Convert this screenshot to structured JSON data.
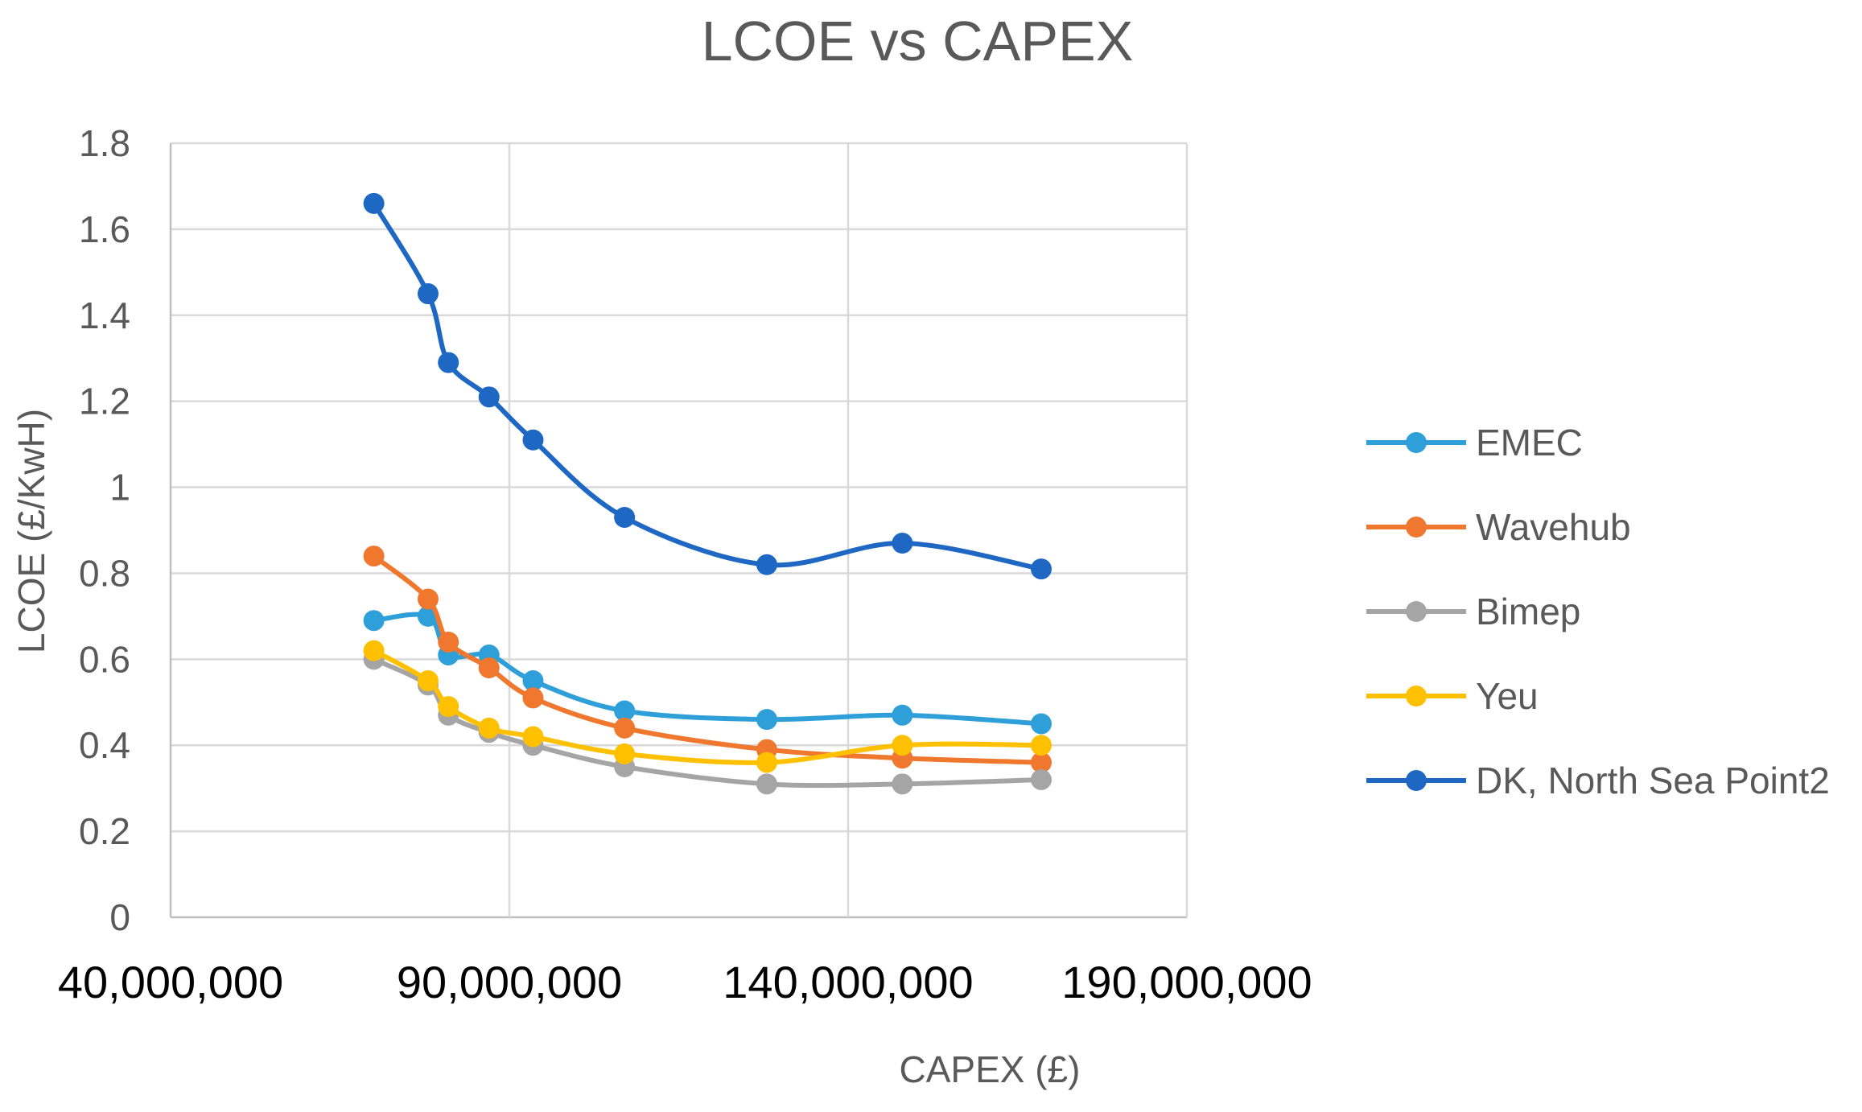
{
  "chart_data": {
    "type": "scatter",
    "subtype": "smooth-lines-with-markers",
    "title": "LCOE vs CAPEX",
    "xlabel": "CAPEX (£)",
    "ylabel": "LCOE (£/KwH)",
    "xlim": [
      40000000,
      190000000
    ],
    "ylim": [
      0,
      1.8
    ],
    "x_ticks": [
      "40,000,000",
      "90,000,000",
      "140,000,000",
      "190,000,000"
    ],
    "y_ticks": [
      "0",
      "0.2",
      "0.4",
      "0.6",
      "0.8",
      "1",
      "1.2",
      "1.4",
      "1.6",
      "1.8"
    ],
    "grid": true,
    "legend_position": "right",
    "x": [
      70000000,
      78000000,
      81000000,
      87000000,
      93500000,
      107000000,
      128000000,
      148000000,
      168500000
    ],
    "series": [
      {
        "name": "EMEC",
        "color": "#2E9FD8",
        "values": [
          0.69,
          0.7,
          0.61,
          0.61,
          0.55,
          0.48,
          0.46,
          0.47,
          0.45
        ]
      },
      {
        "name": "Wavehub",
        "color": "#F0772E",
        "values": [
          0.84,
          0.74,
          0.64,
          0.58,
          0.51,
          0.44,
          0.39,
          0.37,
          0.36
        ]
      },
      {
        "name": "Bimep",
        "color": "#A5A5A5",
        "values": [
          0.6,
          0.54,
          0.47,
          0.43,
          0.4,
          0.35,
          0.31,
          0.31,
          0.32
        ]
      },
      {
        "name": "Yeu",
        "color": "#FFC000",
        "values": [
          0.62,
          0.55,
          0.49,
          0.44,
          0.42,
          0.38,
          0.36,
          0.4,
          0.4
        ]
      },
      {
        "name": "DK, North Sea Point2",
        "color": "#1E68C4",
        "values": [
          1.66,
          1.45,
          1.29,
          1.21,
          1.11,
          0.93,
          0.82,
          0.87,
          0.81
        ]
      }
    ]
  }
}
